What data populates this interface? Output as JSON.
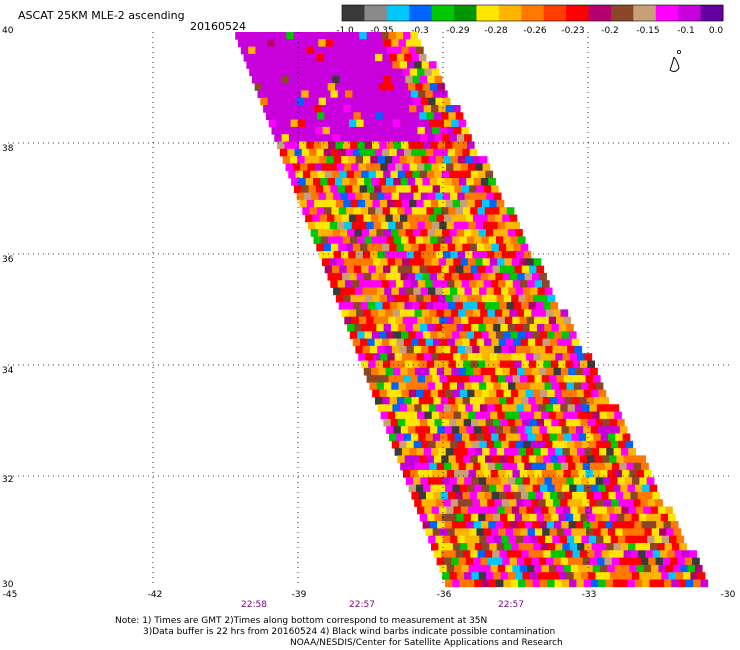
{
  "header": {
    "title": "ASCAT 25KM MLE-2 ascending",
    "date": "20160524"
  },
  "colorbar": {
    "colors": [
      "#3a3a3a",
      "#8a8a8a",
      "#00c8ff",
      "#0064ff",
      "#00c800",
      "#009600",
      "#ffe600",
      "#ffb400",
      "#ff7800",
      "#ff3c00",
      "#ff0000",
      "#b4006e",
      "#8c4628",
      "#c8a078",
      "#ff00ff",
      "#c800dc",
      "#6400a0"
    ],
    "labels": [
      "-1.0",
      "-0.35",
      "-0.3",
      "-0.29",
      "-0.28",
      "-0.26",
      "-0.23",
      "-0.2",
      "-0.15",
      "-0.1",
      "0.0"
    ]
  },
  "axes": {
    "lat_labels": [
      "40",
      "38",
      "36",
      "34",
      "32",
      "30"
    ],
    "lon_labels": [
      "-45",
      "-42",
      "-39",
      "-36",
      "-33",
      "-30"
    ],
    "time_labels": [
      "22:58",
      "22:57",
      "22:57"
    ]
  },
  "map_data": {
    "lat_range": [
      30,
      40
    ],
    "lon_range": [
      -45,
      -30
    ],
    "grid": "dotted",
    "swath_corners": {
      "top_left": [
        -40.3,
        40
      ],
      "top_right": [
        -36.8,
        40
      ],
      "bottom_right": [
        -30.5,
        30
      ],
      "bottom_left": [
        -35.9,
        30
      ]
    },
    "palette": [
      "#ff0000",
      "#ff7800",
      "#ffb400",
      "#ffe600",
      "#ff00ff",
      "#c800dc",
      "#8c4628",
      "#00c800",
      "#0064ff",
      "#00c8ff",
      "#3a3a3a",
      "#c8a078",
      "#b4006e"
    ],
    "weights": [
      14,
      12,
      12,
      12,
      12,
      4,
      6,
      5,
      3,
      3,
      2,
      3,
      2
    ]
  },
  "notes": [
    "Note: 1) Times are GMT 2)Times along bottom correspond to measurement at 35N",
    "3)Data buffer is 22 hrs from 20160524 4) Black wind barbs indicate possible contamination",
    "NOAA/NESDIS/Center for Satellite Applications and Research"
  ]
}
